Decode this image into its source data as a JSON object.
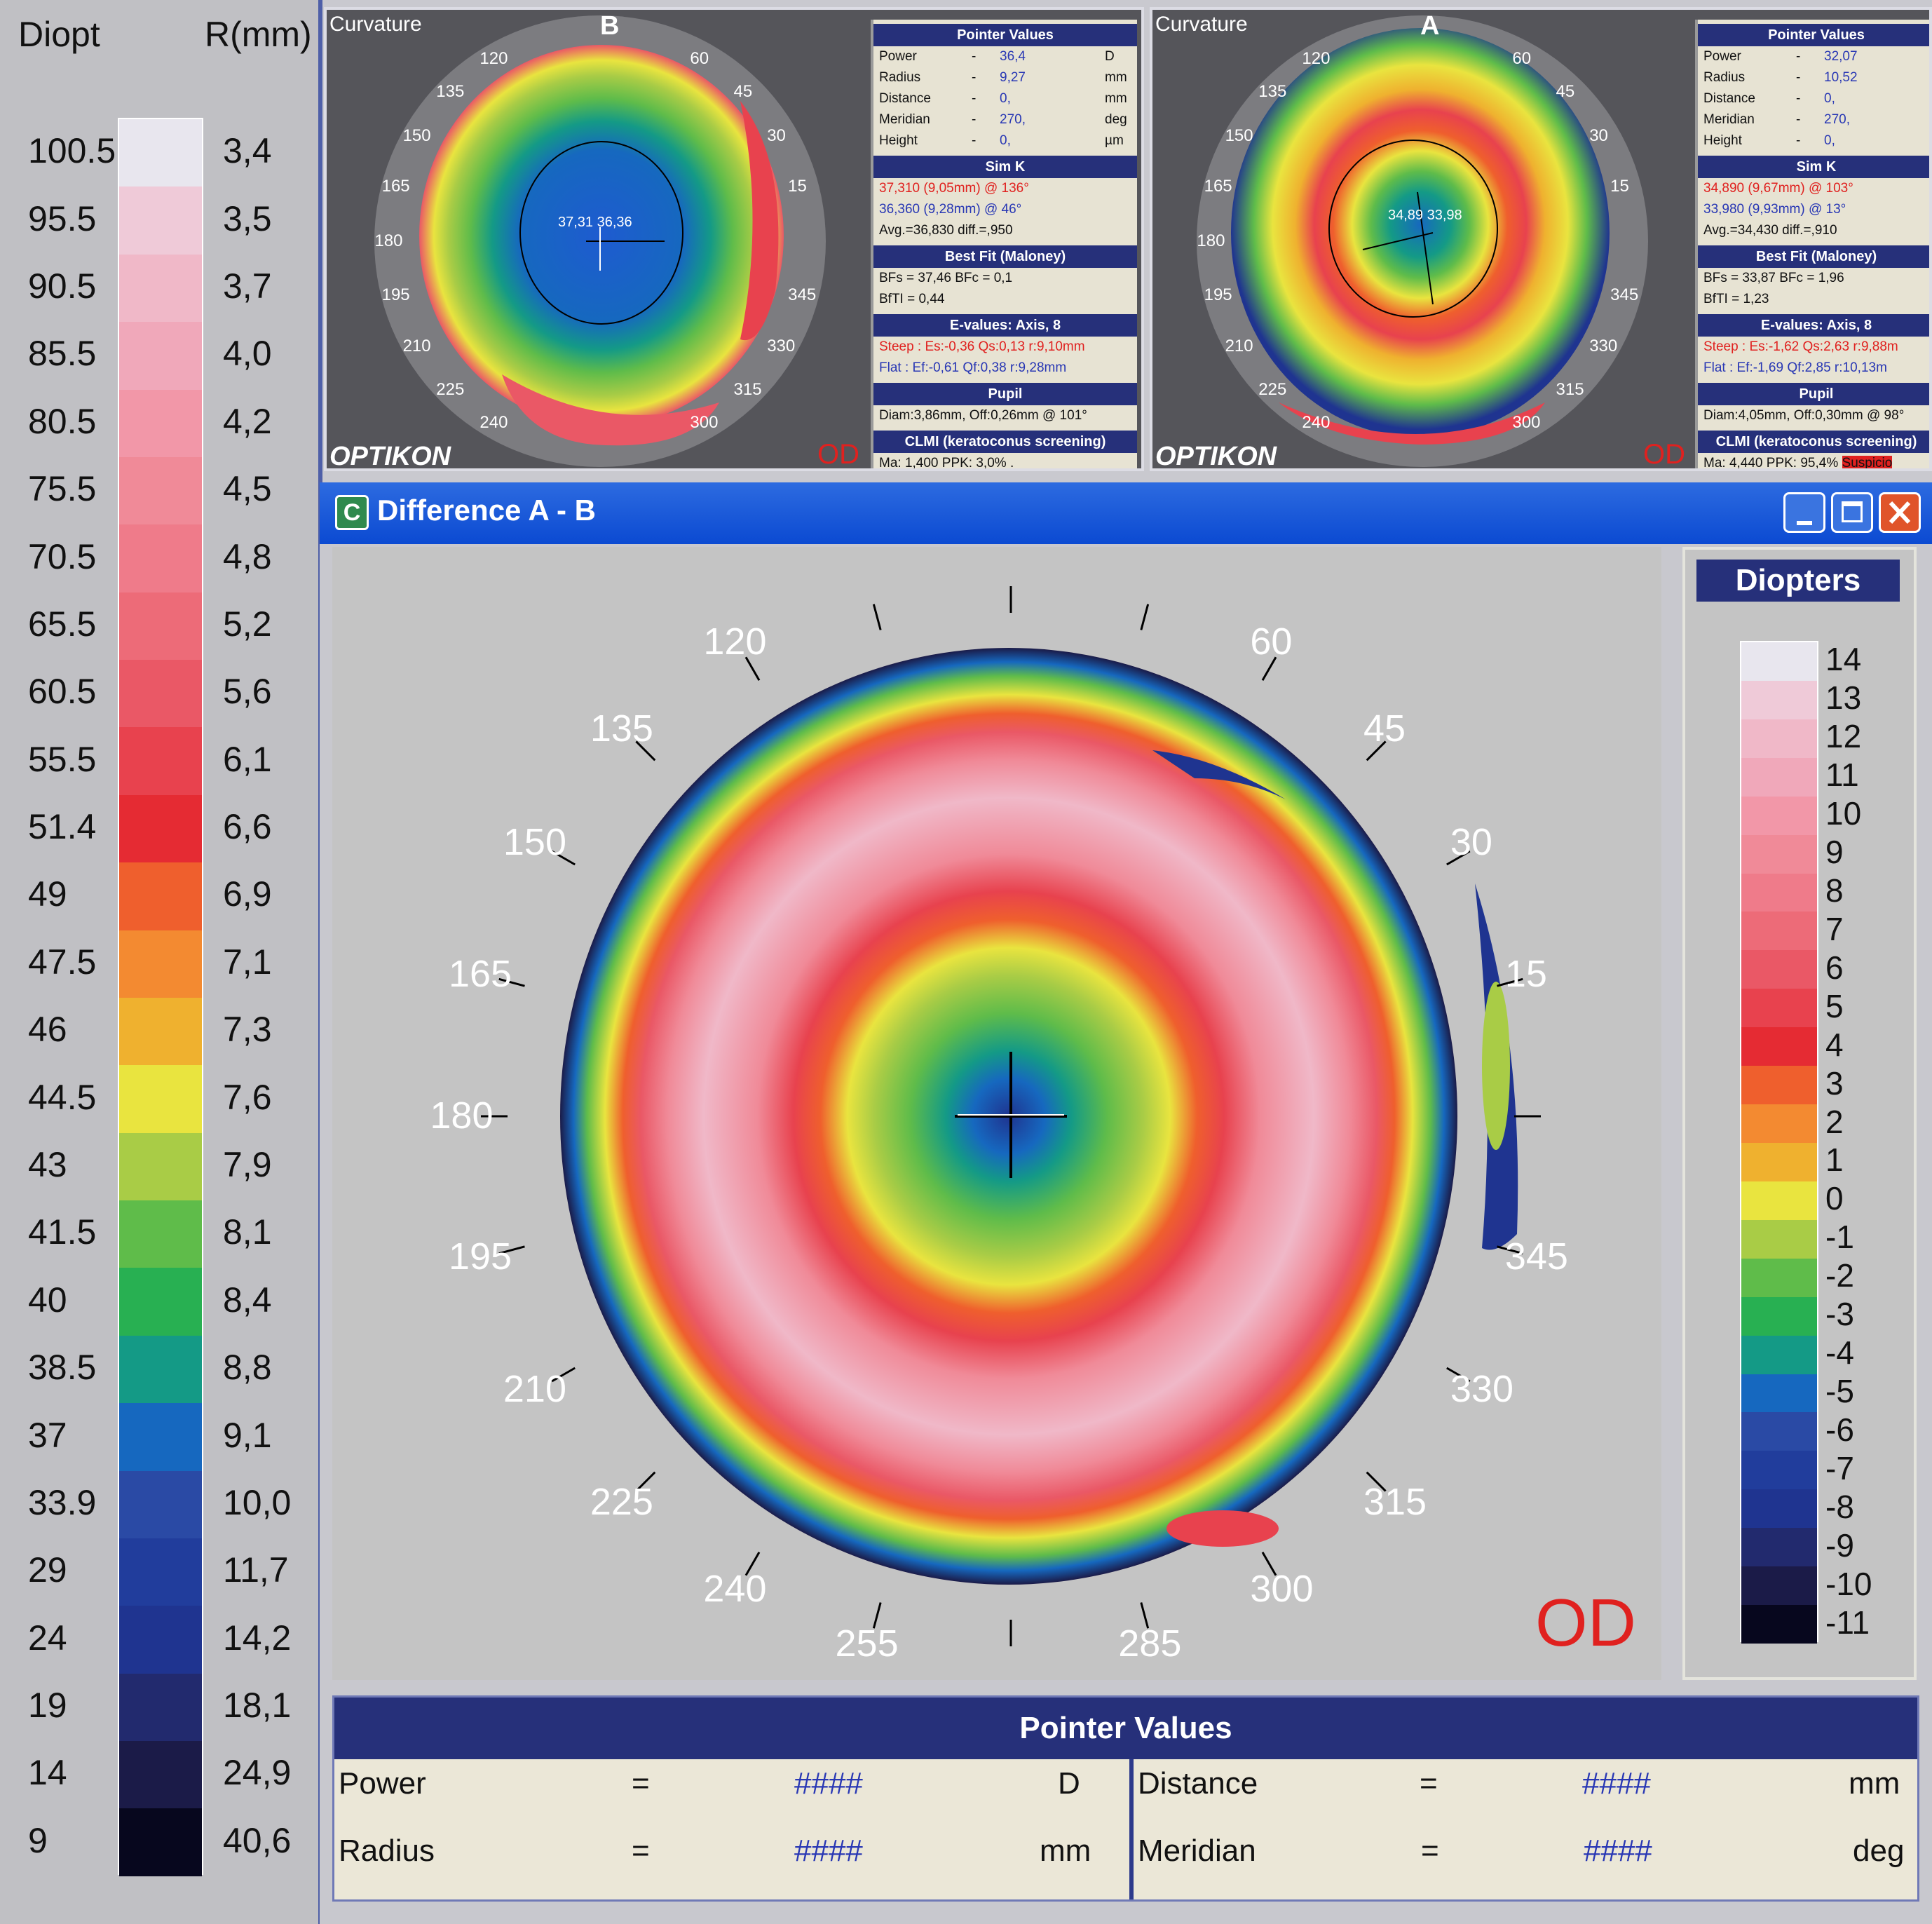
{
  "left_scale": {
    "header_left": "Diopt",
    "header_right": "R(mm)",
    "diopters": [
      "100.5",
      "95.5",
      "90.5",
      "85.5",
      "80.5",
      "75.5",
      "70.5",
      "65.5",
      "60.5",
      "55.5",
      "51.4",
      "49",
      "47.5",
      "46",
      "44.5",
      "43",
      "41.5",
      "40",
      "38.5",
      "37",
      "33.9",
      "29",
      "24",
      "19",
      "14",
      "9"
    ],
    "radii": [
      "3,4",
      "3,5",
      "3,7",
      "4,0",
      "4,2",
      "4,5",
      "4,8",
      "5,2",
      "5,6",
      "6,1",
      "6,6",
      "6,9",
      "7,1",
      "7,3",
      "7,6",
      "7,9",
      "8,1",
      "8,4",
      "8,8",
      "9,1",
      "10,0",
      "11,7",
      "14,2",
      "18,1",
      "24,9",
      "40,6"
    ],
    "colors": [
      "#e8e6ee",
      "#efcad8",
      "#f0b8c8",
      "#f0a8ba",
      "#f297a8",
      "#f08a98",
      "#ef7b8a",
      "#ed6b78",
      "#ea5866",
      "#e8424e",
      "#e52b33",
      "#ef5f2d",
      "#f38a31",
      "#efb12f",
      "#e9e43f",
      "#a9cc46",
      "#5fbc4a",
      "#28b052",
      "#149a86",
      "#1668bf",
      "#2a4aa5",
      "#213d9c",
      "#1f3490",
      "#222a6e",
      "#1b1b48",
      "#07071e"
    ]
  },
  "map_b": {
    "title": "Curvature",
    "label": "B",
    "center_values": "37,31 36,36",
    "eye": "OD",
    "logo": "OPTIKON",
    "angles": [
      "120",
      "60",
      "135",
      "45",
      "150",
      "30",
      "165",
      "15",
      "180",
      "195",
      "345",
      "210",
      "330",
      "225",
      "315",
      "240",
      "300"
    ],
    "info": {
      "pointer_head": "Pointer Values",
      "rows": [
        {
          "k": "Power",
          "v": "36,4",
          "u": "D"
        },
        {
          "k": "Radius",
          "v": "9,27",
          "u": "mm"
        },
        {
          "k": "Distance",
          "v": "0,",
          "u": "mm"
        },
        {
          "k": "Meridian",
          "v": "270,",
          "u": "deg"
        },
        {
          "k": "Height",
          "v": "0,",
          "u": "µm"
        }
      ],
      "simk_head": "Sim K",
      "simk1": "37,310 (9,05mm) @ 136°",
      "simk2": "36,360 (9,28mm) @ 46°",
      "simk3": "Avg.=36,830  diff.=,950",
      "bestfit_head": "Best Fit (Maloney)",
      "bestfit1": "BFs = 37,46  BFc = 0,1",
      "bestfit2": "BfTI = 0,44",
      "evalues_head": "E-values: Axis, 8",
      "steep": "Steep :  Es:-0,36 Qs:0,13 r:9,10mm",
      "flat": "Flat   :  Ef:-0,61 Qf:0,38 r:9,28mm",
      "pupil_head": "Pupil",
      "pupil": "Diam:3,86mm, Off:0,26mm @ 101°",
      "clmi_head": "CLMI (keratoconus screening)",
      "clmi": "Ma: 1,400   PPK: 3,0%  ."
    }
  },
  "map_a": {
    "title": "Curvature",
    "label": "A",
    "center_values": "34,89 33,98",
    "eye": "OD",
    "logo": "OPTIKON",
    "angles": [
      "120",
      "60",
      "135",
      "45",
      "150",
      "30",
      "165",
      "15",
      "180",
      "195",
      "345",
      "210",
      "330",
      "225",
      "315",
      "240",
      "300"
    ],
    "info": {
      "pointer_head": "Pointer Values",
      "rows": [
        {
          "k": "Power",
          "v": "32,07",
          "u": ""
        },
        {
          "k": "Radius",
          "v": "10,52",
          "u": ""
        },
        {
          "k": "Distance",
          "v": "0,",
          "u": ""
        },
        {
          "k": "Meridian",
          "v": "270,",
          "u": ""
        },
        {
          "k": "Height",
          "v": "0,",
          "u": ""
        }
      ],
      "simk_head": "Sim K",
      "simk1": "34,890 (9,67mm) @ 103°",
      "simk2": "33,980 (9,93mm) @ 13°",
      "simk3": "Avg.=34,430  diff.=,910",
      "bestfit_head": "Best Fit (Maloney)",
      "bestfit1": "BFs = 33,87  BFc = 1,96",
      "bestfit2": "BfTI = 1,23",
      "evalues_head": "E-values: Axis, 8",
      "steep": "Steep :  Es:-1,62 Qs:2,63 r:9,88m",
      "flat": "Flat   :  Ef:-1,69 Qf:2,85 r:10,13m",
      "pupil_head": "Pupil",
      "pupil": "Diam:4,05mm, Off:0,30mm @ 98°",
      "clmi_head": "CLMI (keratoconus screening)",
      "clmi": "Ma: 4,440   PPK: 95,4%",
      "clmi_flag": "Suspicio"
    }
  },
  "diff_window": {
    "title": "Difference A - B",
    "title_icon": "C",
    "eye": "OD",
    "angles": [
      "120",
      "60",
      "135",
      "45",
      "150",
      "30",
      "165",
      "15",
      "180",
      "195",
      "345",
      "210",
      "330",
      "225",
      "315",
      "240",
      "300",
      "255",
      "285"
    ],
    "legend_head": "Diopters",
    "legend_values": [
      "14",
      "13",
      "12",
      "11",
      "10",
      "9",
      "8",
      "7",
      "6",
      "5",
      "4",
      "3",
      "2",
      "1",
      "0",
      "-1",
      "-2",
      "-3",
      "-4",
      "-5",
      "-6",
      "-7",
      "-8",
      "-9",
      "-10",
      "-11"
    ],
    "legend_colors": [
      "#e8e6ee",
      "#efcad8",
      "#f0b8c8",
      "#f0a8ba",
      "#f297a8",
      "#f08a98",
      "#ef7b8a",
      "#ed6b78",
      "#ea5866",
      "#e8424e",
      "#e52b33",
      "#ef5f2d",
      "#f38a31",
      "#efb12f",
      "#e9e43f",
      "#a9cc46",
      "#5fbc4a",
      "#28b052",
      "#149a86",
      "#1668bf",
      "#2a4aa5",
      "#213d9c",
      "#1f3490",
      "#222a6e",
      "#1b1b48",
      "#07071e"
    ],
    "pointer": {
      "head": "Pointer Values",
      "power_label": "Power",
      "power_eq": "=",
      "power_val": "####",
      "power_unit": "D",
      "radius_label": "Radius",
      "radius_eq": "=",
      "radius_val": "####",
      "radius_unit": "mm",
      "distance_label": "Distance",
      "distance_eq": "=",
      "distance_val": "####",
      "distance_unit": "mm",
      "meridian_label": "Meridian",
      "meridian_eq": "=",
      "meridian_val": "####",
      "meridian_unit": "deg"
    }
  }
}
